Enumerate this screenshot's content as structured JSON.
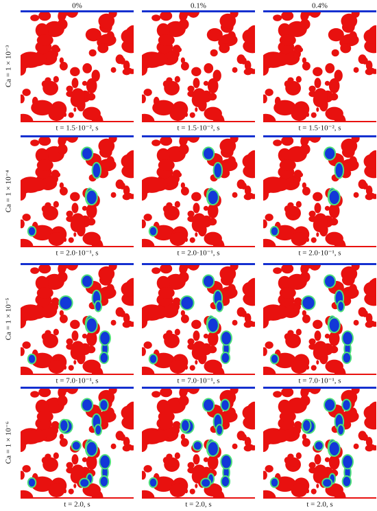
{
  "columns": [
    "0%",
    "0.1%",
    "0.4%"
  ],
  "rows": [
    {
      "label": "Ca = 1 × 10⁻³",
      "captions": [
        "t = 1.5·10⁻², s",
        "t = 1.5·10⁻², s",
        "t = 1.5·10⁻², s"
      ]
    },
    {
      "label": "Ca = 1 × 10⁻⁴",
      "captions": [
        "t = 2.0·10⁻¹, s",
        "t = 2.0·10⁻¹, s",
        "t = 2.0·10⁻¹, s"
      ]
    },
    {
      "label": "Ca = 1 × 10⁻⁵",
      "captions": [
        "t = 7.0·10⁻¹, s",
        "t = 7.0·10⁻¹, s",
        "t = 7.0·10⁻¹, s"
      ]
    },
    {
      "label": "Ca = 1 × 10⁻⁶",
      "captions": [
        "t = 2.0, s",
        "t = 2.0, s",
        "t = 2.0, s"
      ]
    }
  ]
}
